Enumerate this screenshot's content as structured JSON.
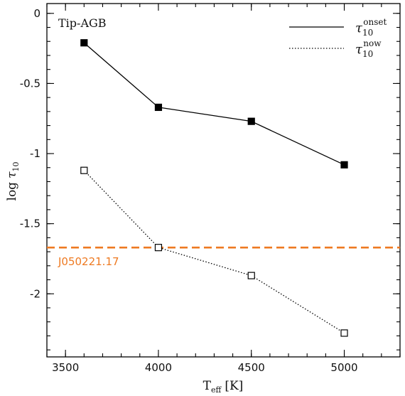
{
  "chart_data": {
    "type": "line",
    "title": "",
    "annotation": "Tip-AGB",
    "xlabel_main": "T",
    "xlabel_sub": "eff",
    "xlabel_unit": "[K]",
    "ylabel_prefix": "log",
    "ylabel_symbol": "τ",
    "ylabel_sub": "10",
    "xlim": [
      3400,
      5300
    ],
    "ylim": [
      -2.45,
      0.07
    ],
    "x_ticks": [
      3500,
      4000,
      4500,
      5000
    ],
    "x_tick_labels": [
      "3500",
      "4000",
      "4500",
      "5000"
    ],
    "y_ticks": [
      0,
      -0.5,
      -1,
      -1.5,
      -2
    ],
    "y_tick_labels": [
      "0",
      "-0.5",
      "-1",
      "-1.5",
      "-2"
    ],
    "x_minor_step": 100,
    "y_minor_step": 0.1,
    "legend_position": "top-right",
    "series": [
      {
        "name_symbol": "τ",
        "name_sub": "10",
        "name_sup": "onset",
        "line_style": "solid",
        "marker": "filled-square",
        "color": "#000000",
        "x": [
          3600,
          4000,
          4500,
          5000
        ],
        "y": [
          -0.21,
          -0.67,
          -0.77,
          -1.08
        ]
      },
      {
        "name_symbol": "τ",
        "name_sub": "10",
        "name_sup": "now",
        "line_style": "dotted",
        "marker": "open-square",
        "color": "#000000",
        "x": [
          3600,
          4000,
          4500,
          5000
        ],
        "y": [
          -1.12,
          -1.67,
          -1.87,
          -2.28
        ]
      }
    ],
    "reference_line": {
      "label": "J050221.17",
      "y": -1.67,
      "color": "#ee7a22",
      "style": "dashed"
    }
  }
}
